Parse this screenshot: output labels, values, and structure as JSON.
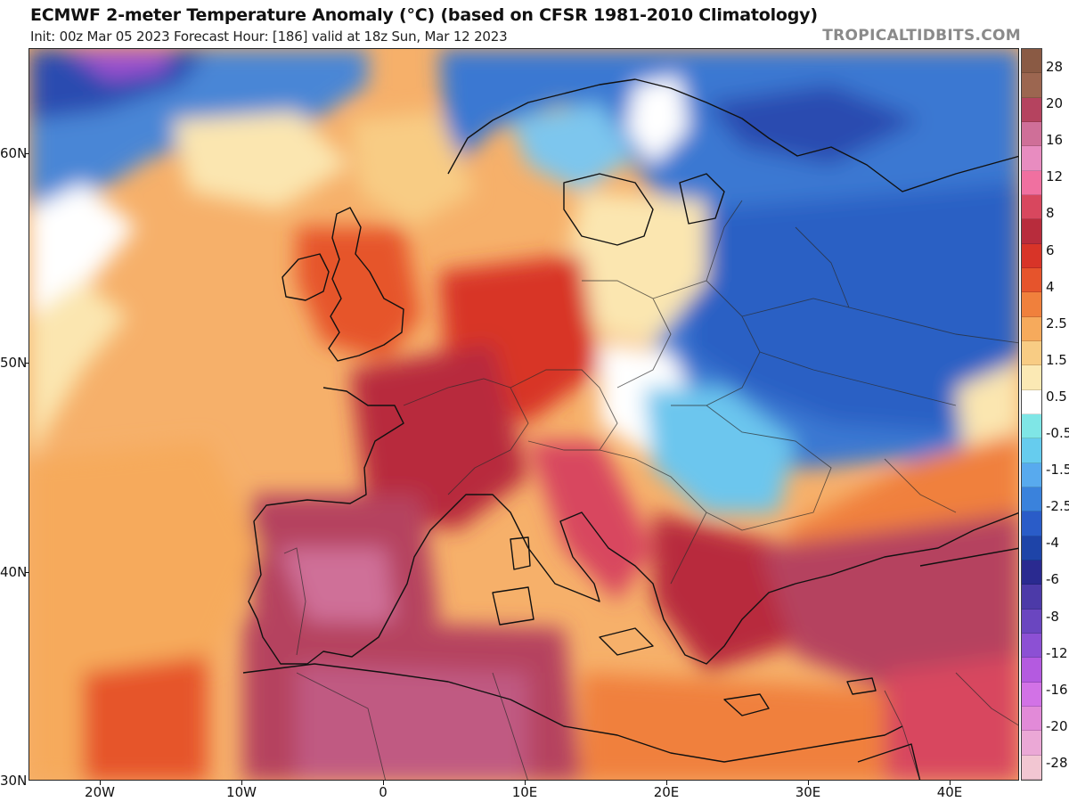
{
  "header": {
    "title": "ECMWF 2-meter Temperature Anomaly (°C) (based on CFSR 1981-2010 Climatology)",
    "subtitle": "Init: 00z Mar 05 2023   Forecast Hour: [186]   valid at 18z Sun, Mar 12 2023",
    "credit": "TROPICALTIDBITS.COM"
  },
  "map": {
    "lat_labels": [
      "60N",
      "50N",
      "40N",
      "30N"
    ],
    "lon_labels": [
      "20W",
      "10W",
      "0",
      "10E",
      "20E",
      "30E",
      "40E"
    ],
    "lon_range": [
      -25,
      45
    ],
    "lat_range": [
      30,
      66
    ]
  },
  "colorbar": {
    "labels": [
      "28",
      "20",
      "16",
      "12",
      "8",
      "6",
      "4",
      "2.5",
      "1.5",
      "0.5",
      "-0.5",
      "-1.5",
      "-2.5",
      "-4",
      "-6",
      "-8",
      "-12",
      "-16",
      "-20",
      "-28"
    ],
    "colors": [
      "#8a5a44",
      "#9c6650",
      "#b5435f",
      "#cf6f98",
      "#e88cc0",
      "#f070a0",
      "#d8475e",
      "#b82c3c",
      "#d83428",
      "#e6542c",
      "#f0803c",
      "#f6aa5c",
      "#f8cc84",
      "#fbe9b4",
      "#ffffff",
      "#7fe6e6",
      "#66ccee",
      "#58aaee",
      "#3a82dc",
      "#2a5cc8",
      "#1e44a8",
      "#2a2a90",
      "#4c3aa8",
      "#6a46c0",
      "#8c50d4",
      "#b45ae0",
      "#d272e6",
      "#e28ad8",
      "#eba8d6",
      "#f2c6d2"
    ]
  }
}
